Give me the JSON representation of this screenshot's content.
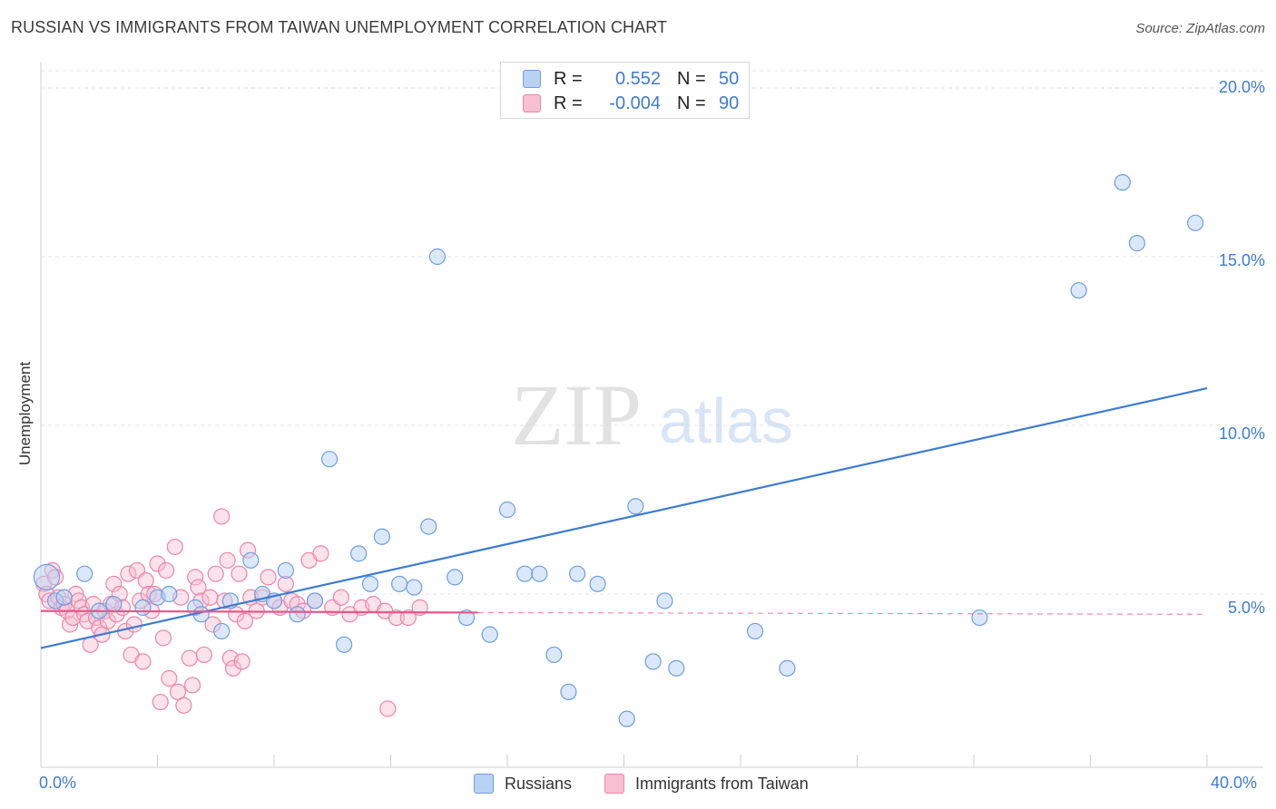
{
  "title": "RUSSIAN VS IMMIGRANTS FROM TAIWAN UNEMPLOYMENT CORRELATION CHART",
  "source": "Source: ZipAtlas.com",
  "watermark": {
    "zip": "ZIP",
    "atlas": "atlas"
  },
  "legend_top": {
    "rows": [
      {
        "r_label": "R =",
        "r_value": "0.552",
        "n_label": "N =",
        "n_value": "50"
      },
      {
        "r_label": "R =",
        "r_value": "-0.004",
        "n_label": "N =",
        "n_value": "90"
      }
    ]
  },
  "colors": {
    "blue": "#3d7cd0",
    "blue_fill": "#b8d2f3",
    "blue_stroke": "#6f9ee0",
    "pink": "#e8578a",
    "pink_fill": "#f7bfd2",
    "pink_stroke": "#ec86a8",
    "grid": "#e3e3e3"
  },
  "chart_data": {
    "type": "scatter",
    "title": "RUSSIAN VS IMMIGRANTS FROM TAIWAN UNEMPLOYMENT CORRELATION CHART",
    "xlabel": "",
    "ylabel": "Unemployment",
    "xlim": [
      0,
      40
    ],
    "ylim": [
      0,
      20.5
    ],
    "x_tick_labels": [
      "0.0%",
      "40.0%"
    ],
    "y_ticks": [
      5,
      10,
      15,
      20
    ],
    "y_tick_labels": [
      "5.0%",
      "10.0%",
      "15.0%",
      "20.0%"
    ],
    "series": [
      {
        "name": "Russians",
        "r": 0.552,
        "n": 50,
        "trend": {
          "x": [
            0,
            40
          ],
          "y": [
            3.4,
            11.1
          ]
        },
        "points": [
          [
            0.2,
            5.5
          ],
          [
            0.5,
            4.8
          ],
          [
            1.5,
            5.6
          ],
          [
            0.8,
            4.9
          ],
          [
            2.5,
            4.7
          ],
          [
            2.0,
            4.5
          ],
          [
            4.0,
            4.9
          ],
          [
            3.5,
            4.6
          ],
          [
            4.4,
            5.0
          ],
          [
            5.3,
            4.6
          ],
          [
            5.5,
            4.4
          ],
          [
            6.2,
            3.9
          ],
          [
            6.5,
            4.8
          ],
          [
            7.2,
            6.0
          ],
          [
            7.6,
            5.0
          ],
          [
            8.0,
            4.8
          ],
          [
            8.4,
            5.7
          ],
          [
            8.8,
            4.4
          ],
          [
            9.4,
            4.8
          ],
          [
            9.9,
            9.0
          ],
          [
            10.4,
            3.5
          ],
          [
            10.9,
            6.2
          ],
          [
            11.3,
            5.3
          ],
          [
            11.7,
            6.7
          ],
          [
            12.3,
            5.3
          ],
          [
            12.8,
            5.2
          ],
          [
            13.3,
            7.0
          ],
          [
            13.6,
            15.0
          ],
          [
            14.2,
            5.5
          ],
          [
            14.6,
            4.3
          ],
          [
            15.4,
            3.8
          ],
          [
            16.0,
            7.5
          ],
          [
            16.6,
            5.6
          ],
          [
            17.1,
            5.6
          ],
          [
            17.6,
            3.2
          ],
          [
            18.1,
            2.1
          ],
          [
            18.4,
            5.6
          ],
          [
            19.1,
            5.3
          ],
          [
            20.1,
            1.3
          ],
          [
            20.4,
            7.6
          ],
          [
            21.0,
            3.0
          ],
          [
            21.4,
            4.8
          ],
          [
            21.8,
            2.8
          ],
          [
            24.5,
            3.9
          ],
          [
            25.6,
            2.8
          ],
          [
            32.2,
            4.3
          ],
          [
            35.6,
            14.0
          ],
          [
            37.1,
            17.2
          ],
          [
            37.6,
            15.4
          ],
          [
            39.6,
            16.0
          ]
        ]
      },
      {
        "name": "Immigrants from Taiwan",
        "r": -0.004,
        "n": 90,
        "trend": {
          "x": [
            0,
            15
          ],
          "y": [
            4.5,
            4.45
          ]
        },
        "trend_extension": {
          "x": [
            15,
            40
          ],
          "y": [
            4.45,
            4.4
          ]
        },
        "points": [
          [
            0.1,
            5.3
          ],
          [
            0.2,
            5.0
          ],
          [
            0.3,
            4.8
          ],
          [
            0.4,
            5.7
          ],
          [
            0.5,
            5.5
          ],
          [
            0.6,
            4.9
          ],
          [
            0.7,
            4.6
          ],
          [
            0.8,
            4.7
          ],
          [
            0.9,
            4.5
          ],
          [
            1.0,
            4.1
          ],
          [
            1.1,
            4.3
          ],
          [
            1.2,
            5.0
          ],
          [
            1.3,
            4.8
          ],
          [
            1.4,
            4.6
          ],
          [
            1.5,
            4.4
          ],
          [
            1.6,
            4.2
          ],
          [
            1.7,
            3.5
          ],
          [
            1.8,
            4.7
          ],
          [
            1.9,
            4.3
          ],
          [
            2.0,
            4.0
          ],
          [
            2.1,
            3.8
          ],
          [
            2.2,
            4.5
          ],
          [
            2.3,
            4.2
          ],
          [
            2.4,
            4.7
          ],
          [
            2.5,
            5.3
          ],
          [
            2.6,
            4.4
          ],
          [
            2.7,
            5.0
          ],
          [
            2.8,
            4.6
          ],
          [
            2.9,
            3.9
          ],
          [
            3.0,
            5.6
          ],
          [
            3.1,
            3.2
          ],
          [
            3.2,
            4.1
          ],
          [
            3.3,
            5.7
          ],
          [
            3.4,
            4.8
          ],
          [
            3.5,
            3.0
          ],
          [
            3.6,
            5.4
          ],
          [
            3.7,
            5.0
          ],
          [
            3.8,
            4.5
          ],
          [
            3.9,
            5.0
          ],
          [
            4.0,
            5.9
          ],
          [
            4.1,
            1.8
          ],
          [
            4.2,
            3.7
          ],
          [
            4.3,
            5.7
          ],
          [
            4.4,
            2.5
          ],
          [
            4.6,
            6.4
          ],
          [
            4.7,
            2.1
          ],
          [
            4.8,
            4.9
          ],
          [
            4.9,
            1.7
          ],
          [
            5.1,
            3.1
          ],
          [
            5.2,
            2.3
          ],
          [
            5.3,
            5.5
          ],
          [
            5.4,
            5.2
          ],
          [
            5.5,
            4.8
          ],
          [
            5.6,
            3.2
          ],
          [
            5.8,
            4.9
          ],
          [
            5.9,
            4.1
          ],
          [
            6.0,
            5.6
          ],
          [
            6.2,
            7.3
          ],
          [
            6.3,
            4.8
          ],
          [
            6.4,
            6.0
          ],
          [
            6.5,
            3.1
          ],
          [
            6.6,
            2.8
          ],
          [
            6.7,
            4.4
          ],
          [
            6.8,
            5.6
          ],
          [
            6.9,
            3.0
          ],
          [
            7.0,
            4.2
          ],
          [
            7.1,
            6.3
          ],
          [
            7.2,
            4.9
          ],
          [
            7.4,
            4.5
          ],
          [
            7.6,
            4.9
          ],
          [
            7.8,
            5.5
          ],
          [
            8.0,
            4.8
          ],
          [
            8.2,
            4.6
          ],
          [
            8.4,
            5.3
          ],
          [
            8.6,
            4.8
          ],
          [
            8.8,
            4.7
          ],
          [
            9.0,
            4.5
          ],
          [
            9.2,
            6.0
          ],
          [
            9.4,
            4.8
          ],
          [
            9.6,
            6.2
          ],
          [
            10.0,
            4.6
          ],
          [
            10.3,
            4.9
          ],
          [
            10.6,
            4.4
          ],
          [
            11.0,
            4.6
          ],
          [
            11.4,
            4.7
          ],
          [
            11.8,
            4.5
          ],
          [
            12.2,
            4.3
          ],
          [
            12.6,
            4.3
          ],
          [
            13.0,
            4.6
          ],
          [
            11.9,
            1.6
          ]
        ]
      }
    ]
  },
  "bottom_legend": [
    "Russians",
    "Immigrants from Taiwan"
  ]
}
